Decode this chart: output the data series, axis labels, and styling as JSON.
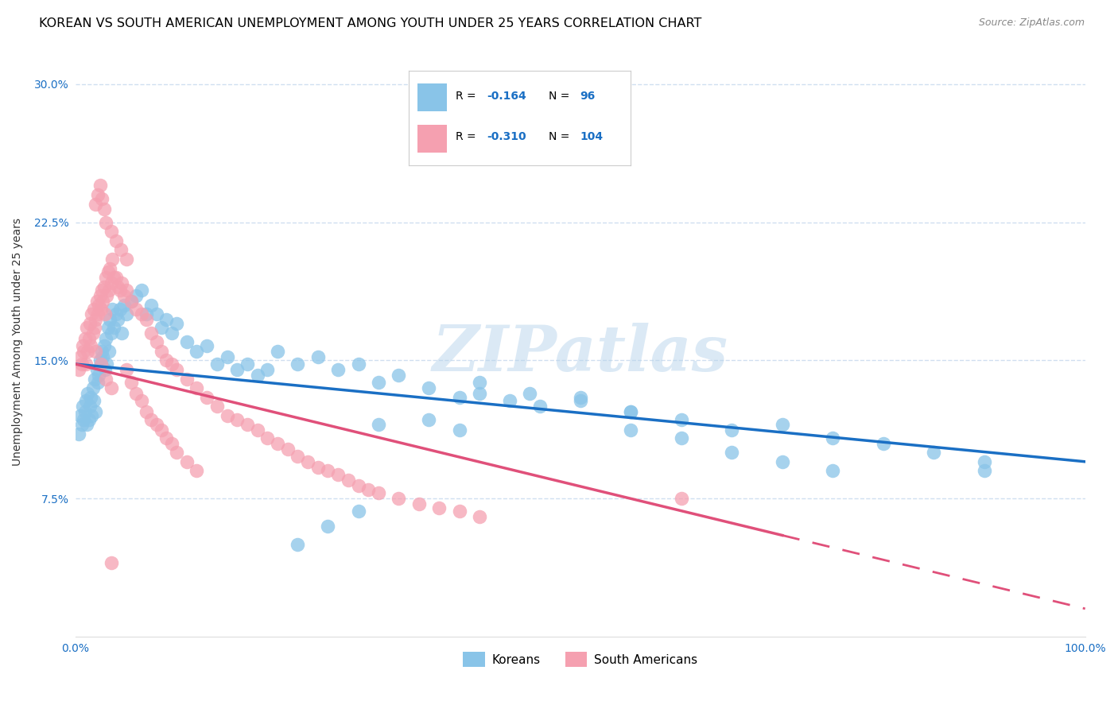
{
  "title": "KOREAN VS SOUTH AMERICAN UNEMPLOYMENT AMONG YOUTH UNDER 25 YEARS CORRELATION CHART",
  "source": "Source: ZipAtlas.com",
  "ylabel": "Unemployment Among Youth under 25 years",
  "xlim": [
    0.0,
    1.0
  ],
  "ylim": [
    0.0,
    0.32
  ],
  "ytick_labels": [
    "7.5%",
    "15.0%",
    "22.5%",
    "30.0%"
  ],
  "ytick_values": [
    0.075,
    0.15,
    0.225,
    0.3
  ],
  "legend_labels": [
    "Koreans",
    "South Americans"
  ],
  "r_korean": -0.164,
  "n_korean": 96,
  "r_sa": -0.31,
  "n_sa": 104,
  "color_korean": "#89c4e8",
  "color_sa": "#f5a0b0",
  "line_color_korean": "#1a6fc4",
  "line_color_sa": "#e0507a",
  "background_color": "#ffffff",
  "grid_color": "#d0dff0",
  "watermark": "ZIPatlas",
  "title_fontsize": 11.5,
  "axis_label_fontsize": 10,
  "tick_fontsize": 10,
  "korean_x": [
    0.003,
    0.005,
    0.006,
    0.007,
    0.008,
    0.009,
    0.01,
    0.011,
    0.012,
    0.013,
    0.014,
    0.015,
    0.016,
    0.017,
    0.018,
    0.019,
    0.02,
    0.021,
    0.022,
    0.023,
    0.024,
    0.025,
    0.026,
    0.027,
    0.028,
    0.029,
    0.03,
    0.031,
    0.032,
    0.033,
    0.034,
    0.035,
    0.036,
    0.038,
    0.04,
    0.042,
    0.044,
    0.046,
    0.048,
    0.05,
    0.055,
    0.06,
    0.065,
    0.07,
    0.075,
    0.08,
    0.085,
    0.09,
    0.095,
    0.1,
    0.11,
    0.12,
    0.13,
    0.14,
    0.15,
    0.16,
    0.17,
    0.18,
    0.19,
    0.2,
    0.22,
    0.24,
    0.26,
    0.28,
    0.3,
    0.32,
    0.35,
    0.38,
    0.4,
    0.43,
    0.46,
    0.5,
    0.55,
    0.6,
    0.65,
    0.7,
    0.75,
    0.8,
    0.85,
    0.9,
    0.4,
    0.45,
    0.5,
    0.55,
    0.3,
    0.35,
    0.38,
    0.28,
    0.25,
    0.22,
    0.55,
    0.6,
    0.65,
    0.7,
    0.75,
    0.9
  ],
  "korean_y": [
    0.11,
    0.12,
    0.115,
    0.125,
    0.118,
    0.122,
    0.128,
    0.115,
    0.132,
    0.118,
    0.125,
    0.13,
    0.12,
    0.135,
    0.128,
    0.14,
    0.122,
    0.145,
    0.138,
    0.142,
    0.15,
    0.148,
    0.155,
    0.152,
    0.158,
    0.145,
    0.162,
    0.148,
    0.168,
    0.155,
    0.172,
    0.165,
    0.178,
    0.168,
    0.175,
    0.172,
    0.178,
    0.165,
    0.18,
    0.175,
    0.182,
    0.185,
    0.188,
    0.175,
    0.18,
    0.175,
    0.168,
    0.172,
    0.165,
    0.17,
    0.16,
    0.155,
    0.158,
    0.148,
    0.152,
    0.145,
    0.148,
    0.142,
    0.145,
    0.155,
    0.148,
    0.152,
    0.145,
    0.148,
    0.138,
    0.142,
    0.135,
    0.13,
    0.132,
    0.128,
    0.125,
    0.13,
    0.122,
    0.118,
    0.112,
    0.115,
    0.108,
    0.105,
    0.1,
    0.095,
    0.138,
    0.132,
    0.128,
    0.122,
    0.115,
    0.118,
    0.112,
    0.068,
    0.06,
    0.05,
    0.112,
    0.108,
    0.1,
    0.095,
    0.09,
    0.09
  ],
  "sa_x": [
    0.003,
    0.005,
    0.006,
    0.007,
    0.008,
    0.009,
    0.01,
    0.011,
    0.012,
    0.013,
    0.014,
    0.015,
    0.016,
    0.017,
    0.018,
    0.019,
    0.02,
    0.021,
    0.022,
    0.023,
    0.024,
    0.025,
    0.026,
    0.027,
    0.028,
    0.029,
    0.03,
    0.031,
    0.032,
    0.033,
    0.034,
    0.035,
    0.036,
    0.038,
    0.04,
    0.042,
    0.044,
    0.046,
    0.048,
    0.05,
    0.055,
    0.06,
    0.065,
    0.07,
    0.075,
    0.08,
    0.085,
    0.09,
    0.095,
    0.1,
    0.11,
    0.12,
    0.13,
    0.14,
    0.15,
    0.16,
    0.17,
    0.18,
    0.19,
    0.2,
    0.21,
    0.22,
    0.23,
    0.24,
    0.25,
    0.26,
    0.27,
    0.28,
    0.29,
    0.3,
    0.32,
    0.34,
    0.36,
    0.38,
    0.4,
    0.05,
    0.055,
    0.06,
    0.065,
    0.07,
    0.075,
    0.08,
    0.085,
    0.09,
    0.095,
    0.1,
    0.11,
    0.12,
    0.02,
    0.022,
    0.024,
    0.026,
    0.028,
    0.03,
    0.035,
    0.04,
    0.045,
    0.05,
    0.02,
    0.025,
    0.03,
    0.035,
    0.6,
    0.035
  ],
  "sa_y": [
    0.145,
    0.152,
    0.148,
    0.158,
    0.155,
    0.162,
    0.148,
    0.168,
    0.155,
    0.162,
    0.17,
    0.158,
    0.175,
    0.165,
    0.178,
    0.168,
    0.172,
    0.182,
    0.175,
    0.18,
    0.185,
    0.178,
    0.188,
    0.182,
    0.19,
    0.175,
    0.195,
    0.185,
    0.198,
    0.188,
    0.2,
    0.192,
    0.205,
    0.195,
    0.195,
    0.19,
    0.188,
    0.192,
    0.185,
    0.188,
    0.182,
    0.178,
    0.175,
    0.172,
    0.165,
    0.16,
    0.155,
    0.15,
    0.148,
    0.145,
    0.14,
    0.135,
    0.13,
    0.125,
    0.12,
    0.118,
    0.115,
    0.112,
    0.108,
    0.105,
    0.102,
    0.098,
    0.095,
    0.092,
    0.09,
    0.088,
    0.085,
    0.082,
    0.08,
    0.078,
    0.075,
    0.072,
    0.07,
    0.068,
    0.065,
    0.145,
    0.138,
    0.132,
    0.128,
    0.122,
    0.118,
    0.115,
    0.112,
    0.108,
    0.105,
    0.1,
    0.095,
    0.09,
    0.235,
    0.24,
    0.245,
    0.238,
    0.232,
    0.225,
    0.22,
    0.215,
    0.21,
    0.205,
    0.155,
    0.148,
    0.14,
    0.135,
    0.075,
    0.04
  ],
  "korean_line_x0": 0.0,
  "korean_line_x1": 1.0,
  "korean_line_y0": 0.148,
  "korean_line_y1": 0.095,
  "sa_line_x0": 0.0,
  "sa_line_x1": 0.7,
  "sa_line_dash_x0": 0.7,
  "sa_line_dash_x1": 1.0,
  "sa_line_y0": 0.148,
  "sa_line_y1": 0.055
}
